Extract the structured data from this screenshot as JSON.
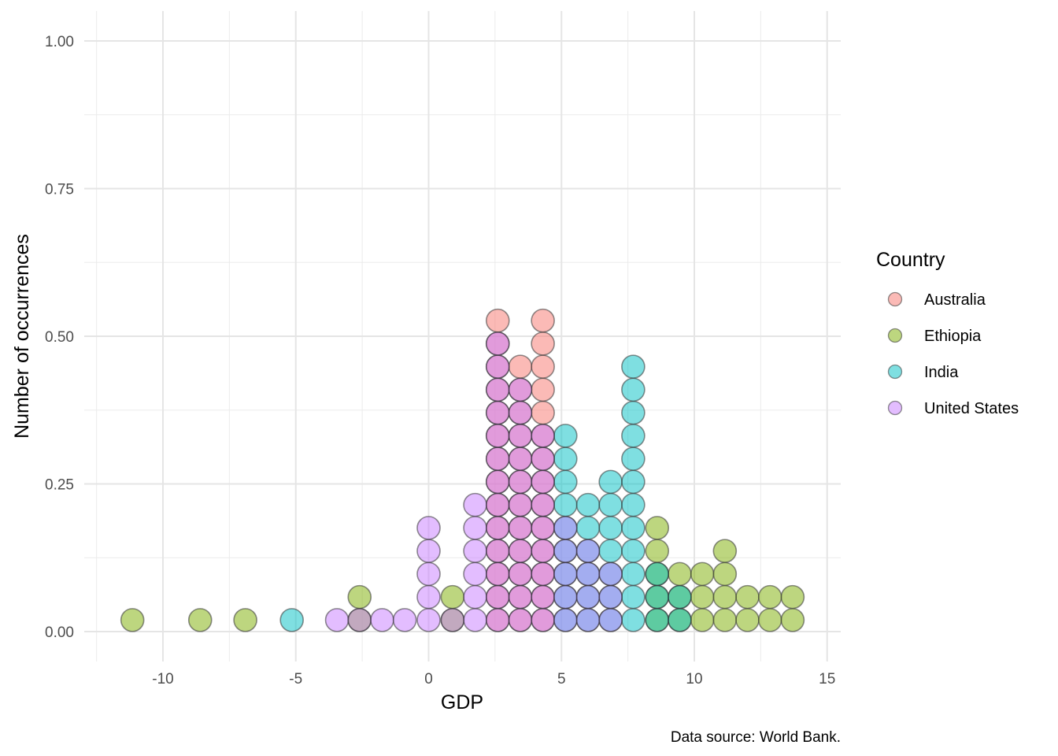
{
  "chart_data": {
    "type": "dotplot",
    "title": "",
    "xlabel": "GDP",
    "ylabel": "Number of occurrences",
    "caption": "Data source: World Bank.",
    "xlim": [
      -12.5,
      15.5
    ],
    "ylim": [
      -0.04,
      1.04
    ],
    "x_ticks": [
      -10,
      -5,
      0,
      5,
      10,
      15
    ],
    "x_tick_labels": [
      "-10",
      "-5",
      "0",
      "5",
      "10",
      "15"
    ],
    "y_ticks": [
      0,
      0.25,
      0.5,
      0.75,
      1
    ],
    "y_tick_labels": [
      "0.00",
      "0.25",
      "0.50",
      "0.75",
      "1.00"
    ],
    "grid": true,
    "legend": {
      "title": "Country",
      "position": "right"
    },
    "dot_step": 0.039,
    "series": [
      {
        "name": "Australia",
        "color": "#F8766D",
        "bins": [
          [
            2.6,
            14
          ],
          [
            3.45,
            12
          ],
          [
            4.3,
            14
          ]
        ]
      },
      {
        "name": "Ethiopia",
        "color": "#7CAE00",
        "bins": [
          [
            -11.15,
            1
          ],
          [
            -8.6,
            1
          ],
          [
            -6.9,
            1
          ],
          [
            -2.6,
            2
          ],
          [
            0.9,
            2
          ],
          [
            8.6,
            5
          ],
          [
            9.45,
            3
          ],
          [
            10.3,
            3
          ],
          [
            11.15,
            4
          ],
          [
            12.0,
            2
          ],
          [
            12.85,
            2
          ],
          [
            13.7,
            2
          ]
        ]
      },
      {
        "name": "India",
        "color": "#00BFC4",
        "bins": [
          [
            -5.15,
            1
          ],
          [
            5.15,
            9
          ],
          [
            6.0,
            6
          ],
          [
            6.85,
            7
          ],
          [
            7.7,
            12
          ],
          [
            8.6,
            3
          ],
          [
            9.45,
            2
          ]
        ]
      },
      {
        "name": "United States",
        "color": "#C77CFF",
        "bins": [
          [
            -3.45,
            1
          ],
          [
            -2.6,
            1
          ],
          [
            -1.75,
            1
          ],
          [
            -0.9,
            1
          ],
          [
            0.0,
            5
          ],
          [
            0.9,
            1
          ],
          [
            1.75,
            6
          ],
          [
            2.6,
            13
          ],
          [
            3.45,
            11
          ],
          [
            4.3,
            9
          ],
          [
            5.15,
            5
          ],
          [
            6.0,
            4
          ],
          [
            6.85,
            3
          ]
        ]
      }
    ]
  }
}
